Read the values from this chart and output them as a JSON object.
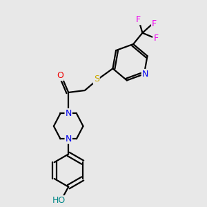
{
  "bg_color": "#e8e8e8",
  "bond_color": "#000000",
  "bond_width": 1.6,
  "atom_colors": {
    "N": "#0000ee",
    "O": "#ee0000",
    "S": "#ccaa00",
    "F": "#ee00ee",
    "C": "#000000",
    "H": "#008888"
  }
}
